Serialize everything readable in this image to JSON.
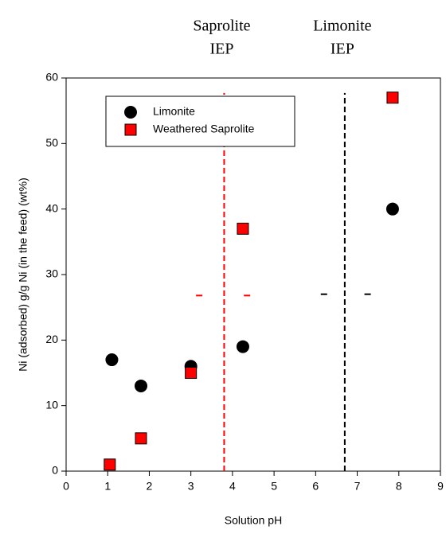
{
  "chart_data": {
    "type": "scatter",
    "x_label": "Solution pH",
    "y_label": "Ni (adsorbed) g/g Ni (in the feed) (wt%)",
    "xlim": [
      0,
      9
    ],
    "xticks": [
      0,
      1,
      2,
      3,
      4,
      5,
      6,
      7,
      8,
      9
    ],
    "ylim": [
      0,
      60
    ],
    "yticks": [
      0,
      10,
      20,
      30,
      40,
      50,
      60
    ],
    "legend": "upper-left",
    "series": [
      {
        "name": "Limonite",
        "color": "#000000",
        "marker": "circle",
        "x": [
          1.1,
          1.8,
          3.0,
          4.25,
          7.85
        ],
        "values": [
          17,
          13,
          16,
          19,
          40
        ]
      },
      {
        "name": "Weathered Saprolite",
        "color": "#ff0000",
        "marker": "square",
        "x": [
          1.05,
          1.8,
          3.0,
          4.25,
          7.85
        ],
        "values": [
          1,
          5,
          15,
          37,
          57
        ]
      }
    ],
    "reference_lines": [
      {
        "x": 3.8,
        "color": "#ff0000",
        "label": [
          "Saprolite",
          "IEP"
        ]
      },
      {
        "x": 6.7,
        "color": "#000000",
        "label": [
          "Limonite",
          "IEP"
        ]
      }
    ],
    "dash_marks": [
      {
        "x": 3.2,
        "y": 26.8,
        "color": "#ff0000"
      },
      {
        "x": 4.35,
        "y": 26.8,
        "color": "#ff0000"
      },
      {
        "x": 6.2,
        "y": 27,
        "color": "#000000"
      },
      {
        "x": 7.25,
        "y": 27,
        "color": "#000000"
      }
    ]
  }
}
